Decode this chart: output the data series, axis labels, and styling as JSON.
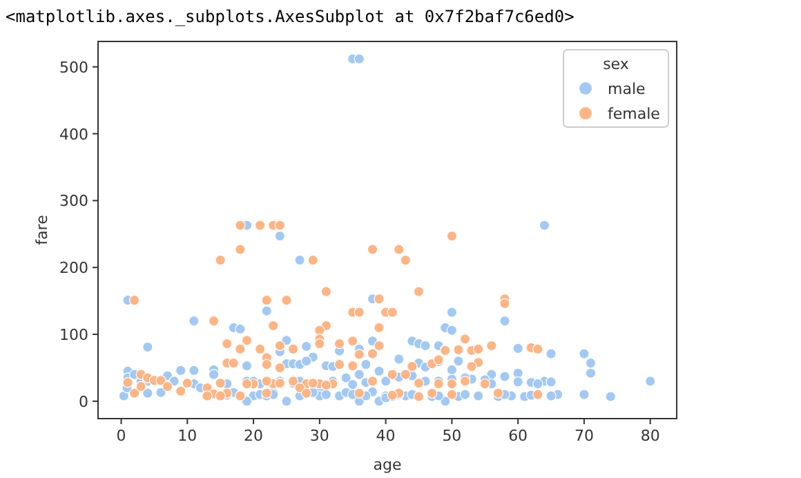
{
  "chart_data": {
    "type": "scatter",
    "xlabel": "age",
    "ylabel": "fare",
    "legend_title": "sex",
    "legend": "top right",
    "marker": "circle",
    "annotations": [
      "<matplotlib.axes._subplots.AxesSubplot at 0x7f2baf7c6ed0>"
    ],
    "xlim": [
      -3.5,
      84
    ],
    "xticks": [
      0,
      10,
      20,
      30,
      40,
      50,
      60,
      70,
      80
    ],
    "ylim": [
      -26,
      538
    ],
    "yticks": [
      0,
      100,
      200,
      300,
      400,
      500
    ],
    "series": [
      {
        "name": "male",
        "color": "#a1c9f4",
        "x": [
          35,
          36,
          64,
          19,
          24,
          27,
          1,
          22,
          38,
          50,
          58,
          11,
          17,
          18,
          49,
          50,
          36,
          4,
          25,
          38,
          44,
          45,
          46,
          48,
          49,
          28,
          29,
          60,
          65,
          70,
          71,
          71,
          80,
          74,
          70,
          66,
          65,
          61,
          60,
          58,
          56,
          55,
          53,
          60,
          62,
          64,
          65,
          52,
          50,
          48,
          46,
          44,
          42,
          40,
          45,
          46,
          48,
          51,
          50,
          42,
          0.4,
          0.9,
          1,
          1,
          2,
          3,
          4,
          4,
          6,
          7,
          8,
          9,
          11,
          11,
          12,
          14,
          14,
          16,
          17,
          19,
          19,
          20,
          21,
          23,
          24,
          25,
          26,
          27,
          28,
          30,
          31,
          32,
          33,
          34,
          35,
          36,
          37,
          39,
          40,
          41,
          43,
          19,
          25,
          36,
          39,
          40,
          47,
          49,
          51,
          54,
          57,
          59,
          30,
          33,
          27,
          29,
          22,
          18,
          16,
          26,
          32,
          34,
          38,
          44,
          48,
          56,
          63,
          24,
          20,
          23,
          27,
          31,
          35,
          37,
          42,
          52,
          58,
          62,
          21,
          37
        ],
        "values": [
          512,
          512,
          263,
          263,
          247,
          211,
          151,
          135,
          153,
          133,
          120,
          120,
          110,
          108,
          110,
          106,
          78,
          81,
          91,
          90,
          90,
          86,
          83,
          83,
          77,
          82,
          66,
          79,
          71,
          71,
          57,
          42,
          30,
          7,
          10,
          10,
          8,
          7,
          42,
          37,
          40,
          32,
          33,
          29,
          28,
          30,
          29,
          35,
          33,
          30,
          30,
          38,
          36,
          30,
          57,
          51,
          59,
          60,
          47,
          63,
          8,
          20,
          45,
          35,
          40,
          30,
          30,
          12,
          13,
          38,
          30,
          46,
          46,
          26,
          20,
          47,
          40,
          26,
          13,
          53,
          30,
          8,
          10,
          13,
          74,
          56,
          56,
          55,
          60,
          13,
          53,
          52,
          75,
          35,
          25,
          40,
          55,
          45,
          8,
          7,
          8,
          0,
          0,
          0,
          0,
          5,
          7,
          0,
          7,
          8,
          7,
          8,
          8,
          8,
          8,
          13,
          8,
          8,
          9,
          27,
          30,
          13,
          14,
          10,
          8,
          26,
          26,
          30,
          30,
          10,
          30,
          10,
          10,
          8,
          10,
          10,
          10,
          9,
          26,
          28
        ]
      },
      {
        "name": "female",
        "color": "#ffb482",
        "x": [
          18,
          21,
          23,
          24,
          18,
          15,
          29,
          38,
          42,
          43,
          50,
          2,
          22,
          25,
          31,
          35,
          36,
          39,
          40,
          41,
          45,
          58,
          58,
          14,
          23,
          31,
          30,
          30,
          39,
          16,
          18,
          19,
          21,
          22,
          24,
          26,
          30,
          33,
          35,
          39,
          35,
          38,
          16,
          17,
          22,
          24,
          20,
          15,
          13,
          14,
          16,
          19,
          23,
          26,
          28,
          30,
          32,
          38,
          41,
          43,
          44,
          47,
          48,
          49,
          51,
          52,
          53,
          54,
          54,
          56,
          62,
          63,
          53,
          55,
          50,
          48,
          45,
          47,
          50,
          57,
          63,
          42,
          36,
          3,
          4,
          5,
          6,
          7,
          9,
          2,
          3,
          13,
          15,
          18,
          22,
          24,
          27,
          33,
          45,
          52,
          36,
          22,
          29,
          31,
          28,
          41,
          1,
          10
        ],
        "values": [
          263,
          263,
          263,
          263,
          227,
          211,
          211,
          227,
          227,
          211,
          247,
          151,
          151,
          151,
          164,
          133,
          133,
          153,
          133,
          133,
          164,
          153,
          146,
          120,
          113,
          113,
          106,
          93,
          110,
          86,
          78,
          91,
          78,
          65,
          83,
          78,
          86,
          86,
          90,
          83,
          53,
          71,
          57,
          57,
          55,
          50,
          26,
          27,
          20,
          11,
          12,
          26,
          26,
          30,
          26,
          26,
          26,
          30,
          40,
          40,
          52,
          56,
          62,
          76,
          77,
          93,
          76,
          78,
          58,
          83,
          80,
          78,
          52,
          26,
          26,
          26,
          27,
          12,
          10,
          12,
          10,
          12,
          12,
          40,
          35,
          31,
          31,
          22,
          15,
          12,
          22,
          8,
          8,
          8,
          30,
          27,
          20,
          55,
          7,
          30,
          70,
          12,
          27,
          24,
          12,
          9,
          28,
          27
        ]
      }
    ]
  }
}
